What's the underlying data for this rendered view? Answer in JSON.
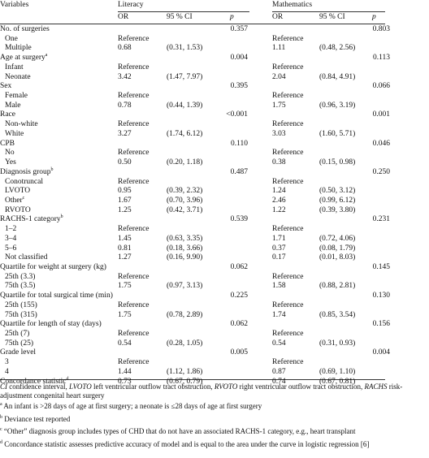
{
  "table": {
    "header": {
      "variables": "Variables",
      "literacy": "Literacy",
      "mathematics": "Mathematics",
      "or": "OR",
      "ci": "95 % CI",
      "p": "p"
    },
    "groups": [
      {
        "label": "No. of surgeries",
        "lit_p": "0.357",
        "math_p": "0.803",
        "levels": [
          {
            "label": "One",
            "lit_or": "Reference",
            "math_or": "Reference"
          },
          {
            "label": "Multiple",
            "lit_or": "0.68",
            "lit_ci": "(0.31, 1.53)",
            "math_or": "1.11",
            "math_ci": "(0.48, 2.56)"
          }
        ]
      },
      {
        "label": "Age at surgery",
        "sup": "a",
        "lit_p": "0.004",
        "math_p": "0.113",
        "levels": [
          {
            "label": "Infant",
            "lit_or": "Reference",
            "math_or": "Reference"
          },
          {
            "label": "Neonate",
            "lit_or": "3.42",
            "lit_ci": "(1.47, 7.97)",
            "math_or": "2.04",
            "math_ci": "(0.84, 4.91)"
          }
        ]
      },
      {
        "label": "Sex",
        "lit_p": "0.395",
        "math_p": "0.066",
        "levels": [
          {
            "label": "Female",
            "lit_or": "Reference",
            "math_or": "Reference"
          },
          {
            "label": "Male",
            "lit_or": "0.78",
            "lit_ci": "(0.44, 1.39)",
            "math_or": "1.75",
            "math_ci": "(0.96, 3.19)"
          }
        ]
      },
      {
        "label": "Race",
        "lit_p": "<0.001",
        "math_p": "0.001",
        "levels": [
          {
            "label": "Non-white",
            "lit_or": "Reference",
            "math_or": "Reference"
          },
          {
            "label": "White",
            "lit_or": "3.27",
            "lit_ci": "(1.74, 6.12)",
            "math_or": "3.03",
            "math_ci": "(1.60, 5.71)"
          }
        ]
      },
      {
        "label": "CPB",
        "lit_p": "0.110",
        "math_p": "0.046",
        "levels": [
          {
            "label": "No",
            "lit_or": "Reference",
            "math_or": "Reference"
          },
          {
            "label": "Yes",
            "lit_or": "0.50",
            "lit_ci": "(0.20, 1.18)",
            "math_or": "0.38",
            "math_ci": "(0.15, 0.98)"
          }
        ]
      },
      {
        "label": "Diagnosis group",
        "sup": "b",
        "lit_p": "0.487",
        "math_p": "0.250",
        "levels": [
          {
            "label": "Conotruncal",
            "lit_or": "Reference",
            "math_or": "Reference"
          },
          {
            "label": "LVOTO",
            "lit_or": "0.95",
            "lit_ci": "(0.39, 2.32)",
            "math_or": "1.24",
            "math_ci": "(0.50, 3.12)"
          },
          {
            "label": "Other",
            "sup": "c",
            "lit_or": "1.67",
            "lit_ci": "(0.70, 3.96)",
            "math_or": "2.46",
            "math_ci": "(0.99, 6.12)"
          },
          {
            "label": "RVOTO",
            "lit_or": "1.25",
            "lit_ci": "(0.42, 3.71)",
            "math_or": "1.22",
            "math_ci": "(0.39, 3.80)"
          }
        ]
      },
      {
        "label": "RACHS-1 category",
        "sup": "b",
        "lit_p": "0.539",
        "math_p": "0.231",
        "levels": [
          {
            "label": "1–2",
            "lit_or": "Reference",
            "math_or": "Reference"
          },
          {
            "label": "3–4",
            "lit_or": "1.45",
            "lit_ci": "(0.63, 3.35)",
            "math_or": "1.71",
            "math_ci": "(0.72, 4.06)"
          },
          {
            "label": "5–6",
            "lit_or": "0.81",
            "lit_ci": "(0.18, 3.66)",
            "math_or": "0.37",
            "math_ci": "(0.08, 1.79)"
          },
          {
            "label": "Not classified",
            "lit_or": "1.27",
            "lit_ci": "(0.16, 9.90)",
            "math_or": "0.17",
            "math_ci": "(0.01, 8.03)"
          }
        ]
      },
      {
        "label": "Quartile for weight at surgery (kg)",
        "lit_p": "0.062",
        "math_p": "0.145",
        "levels": [
          {
            "label": "25th (3.3)",
            "lit_or": "Reference",
            "math_or": "Reference"
          },
          {
            "label": "75th (3.5)",
            "lit_or": "1.75",
            "lit_ci": "(0.97, 3.13)",
            "math_or": "1.58",
            "math_ci": "(0.88, 2.81)"
          }
        ]
      },
      {
        "label": "Quartile for total surgical time (min)",
        "lit_p": "0.225",
        "math_p": "0.130",
        "levels": [
          {
            "label": "25th (155)",
            "lit_or": "Reference",
            "math_or": "Reference"
          },
          {
            "label": "75th (315)",
            "lit_or": "1.75",
            "lit_ci": "(0.78, 2.89)",
            "math_or": "1.74",
            "math_ci": "(0.85, 3.54)"
          }
        ]
      },
      {
        "label": "Quartile for length of stay (days)",
        "lit_p": "0.062",
        "math_p": "0.156",
        "levels": [
          {
            "label": "25th (7)",
            "lit_or": "Reference",
            "math_or": "Reference"
          },
          {
            "label": "75th (25)",
            "lit_or": "0.54",
            "lit_ci": "(0.28, 1.05)",
            "math_or": "0.54",
            "math_ci": "(0.31, 0.93)"
          }
        ]
      },
      {
        "label": "Grade level",
        "lit_p": "0.005",
        "math_p": "0.004",
        "levels": [
          {
            "label": "3",
            "lit_or": "Reference",
            "math_or": "Reference"
          },
          {
            "label": "4",
            "lit_or": "1.44",
            "lit_ci": "(1.12, 1.86)",
            "math_or": "0.87",
            "math_ci": "(0.69, 1.10)"
          }
        ]
      },
      {
        "label": "Concordance statistic",
        "sup": "d",
        "lit_or": "0.73",
        "lit_ci": "(0.67, 0.79)",
        "math_or": "0.74",
        "math_ci": "(0.67, 0.81)"
      }
    ]
  },
  "footnotes": {
    "abbrev": "CI confidence interval, LVOTO left ventricular outflow tract obstruction, RVOTO right ventricular outflow tract obstruction, RACHS risk-adjustment congenital heart surgery",
    "notes": [
      {
        "mark": "a",
        "text": "An infant is >28 days of age at first surgery; a neonate is ≤28 days of age at first surgery"
      },
      {
        "mark": "b",
        "text": "Deviance test reported"
      },
      {
        "mark": "c",
        "text": "“Other” diagnosis group includes types of CHD that do not have an associated RACHS-1 category, e.g., heart transplant"
      },
      {
        "mark": "d",
        "text": "Concordance statistic assesses predictive accuracy of model and is equal to the area under the curve in logistic regression [6]"
      }
    ]
  }
}
